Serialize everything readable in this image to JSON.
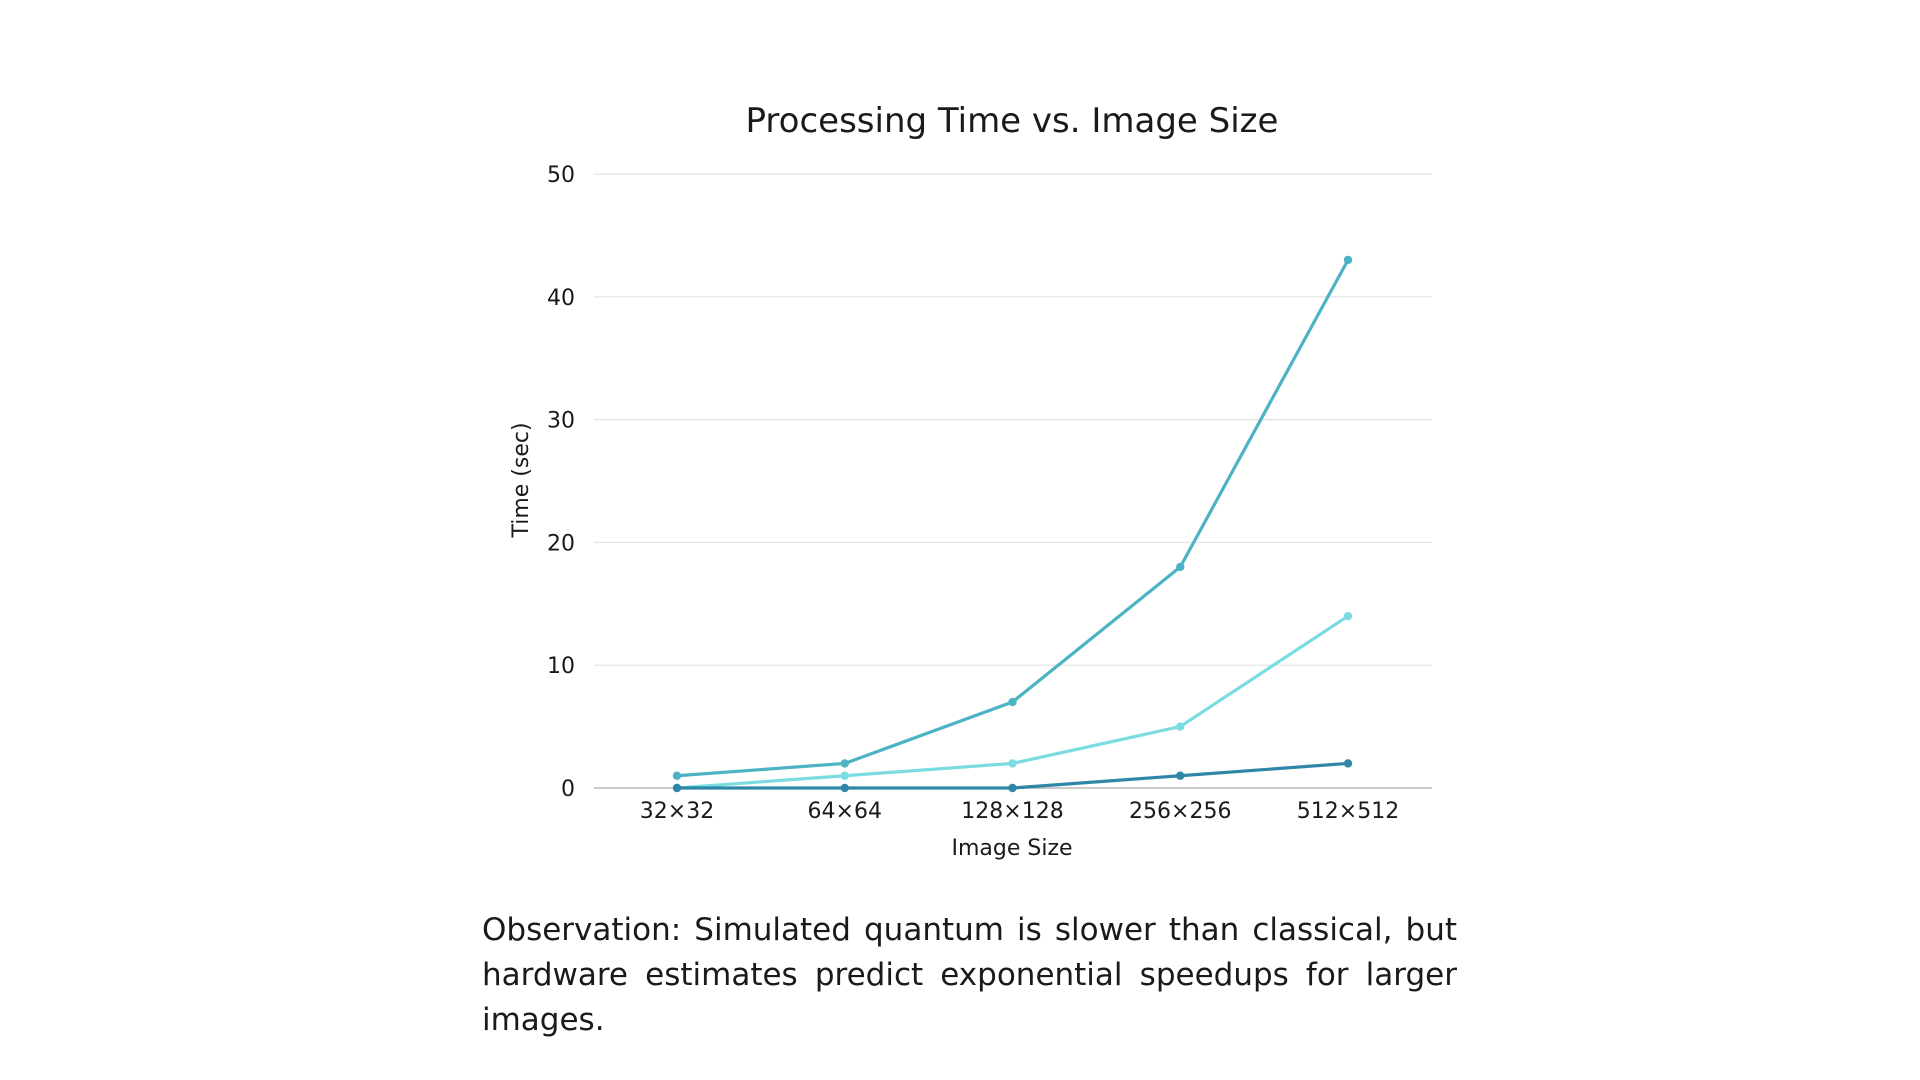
{
  "chart_data": {
    "type": "line",
    "title": "Processing Time vs. Image Size",
    "xlabel": "Image Size",
    "ylabel": "Time (sec)",
    "categories": [
      "32×32",
      "64×64",
      "128×128",
      "256×256",
      "512×512"
    ],
    "ylim": [
      0,
      50
    ],
    "yticks": [
      0,
      10,
      20,
      30,
      40,
      50
    ],
    "grid": true,
    "legend": "none",
    "series": [
      {
        "color": "#4bb3c4",
        "values": [
          1,
          2,
          7,
          18,
          43
        ]
      },
      {
        "color": "#7adce0",
        "values": [
          0,
          1,
          2,
          5,
          14
        ]
      },
      {
        "color": "#2f86a6",
        "values": [
          0,
          0,
          0,
          1,
          2
        ]
      }
    ]
  },
  "observation": "Observation: Simulated quantum is slower than classical, but hardware estimates predict exponential speedups for larger images."
}
